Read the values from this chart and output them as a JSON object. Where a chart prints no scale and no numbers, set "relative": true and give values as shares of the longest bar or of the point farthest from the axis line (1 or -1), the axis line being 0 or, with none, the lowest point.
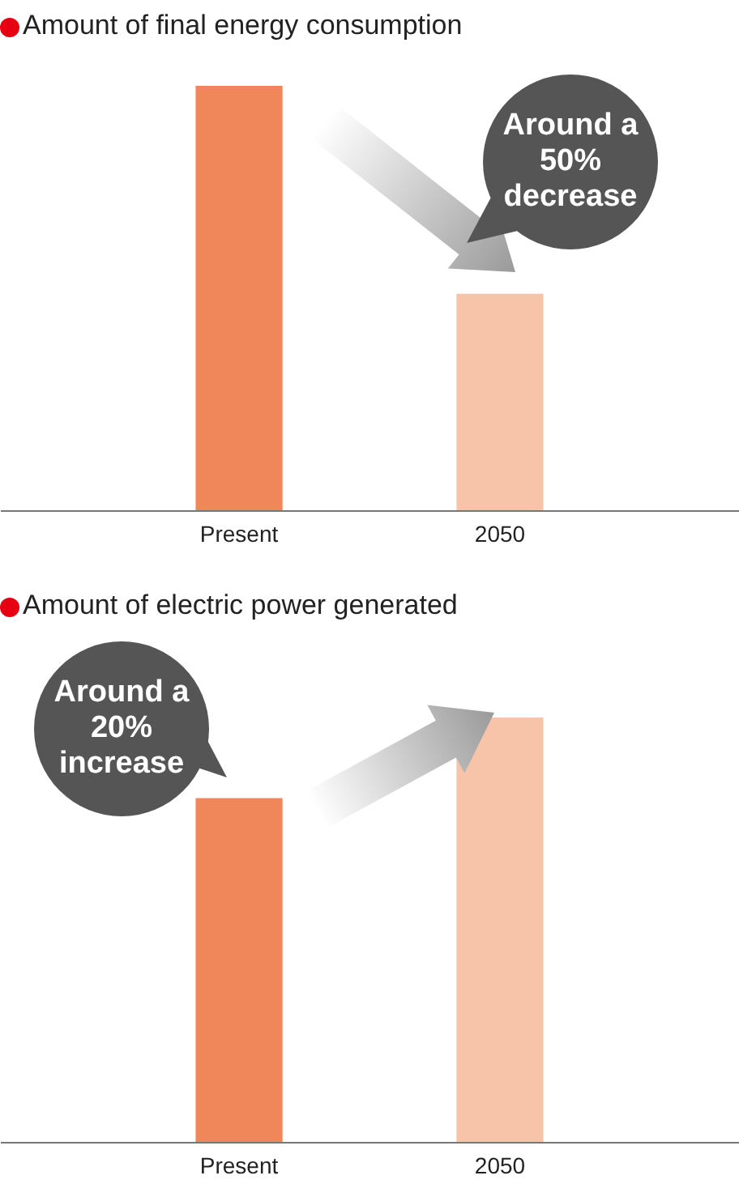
{
  "chart_data": [
    {
      "type": "bar",
      "title": "Amount of final energy consumption",
      "relative": true,
      "categories": [
        "Present",
        "2050"
      ],
      "values": [
        1,
        0.51
      ],
      "colors": [
        "#f0875a",
        "#f7c4aa"
      ],
      "annotations": [
        "Around a 50% decrease"
      ]
    },
    {
      "type": "bar",
      "title": "Amount of electric power generated",
      "relative": true,
      "categories": [
        "Present",
        "2050"
      ],
      "values": [
        0.81,
        1
      ],
      "colors": [
        "#f0875a",
        "#f7c4aa"
      ],
      "annotations": [
        "Around a 20% increase"
      ]
    }
  ]
}
